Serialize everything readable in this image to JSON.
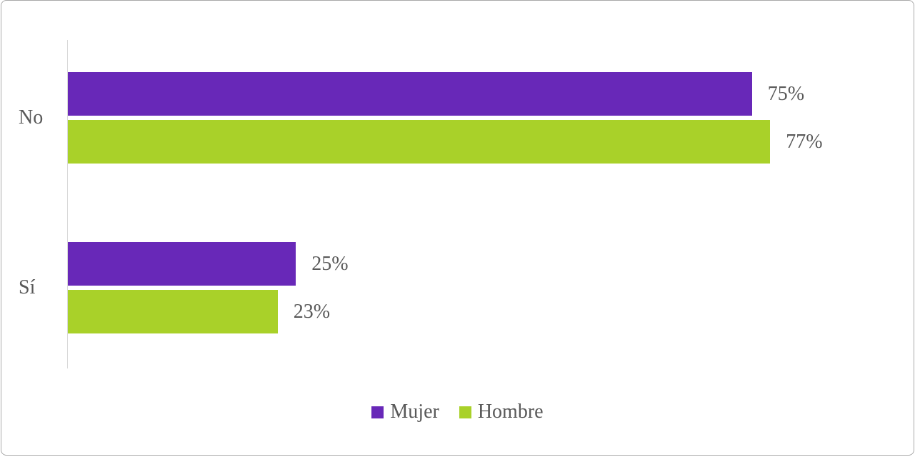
{
  "chart_data": {
    "type": "bar",
    "orientation": "horizontal",
    "categories": [
      "No",
      "Sí"
    ],
    "series": [
      {
        "name": "Mujer",
        "color": "#6828B8",
        "values": [
          75,
          25
        ]
      },
      {
        "name": "Hombre",
        "color": "#A9D129",
        "values": [
          77,
          23
        ]
      }
    ],
    "value_suffix": "%",
    "xlim": [
      0,
      100
    ],
    "grid": false,
    "legend_position": "bottom"
  },
  "colors": {
    "axis_line": "#d9d9d9",
    "text": "#595959",
    "frame_border": "#a9a9a9"
  }
}
